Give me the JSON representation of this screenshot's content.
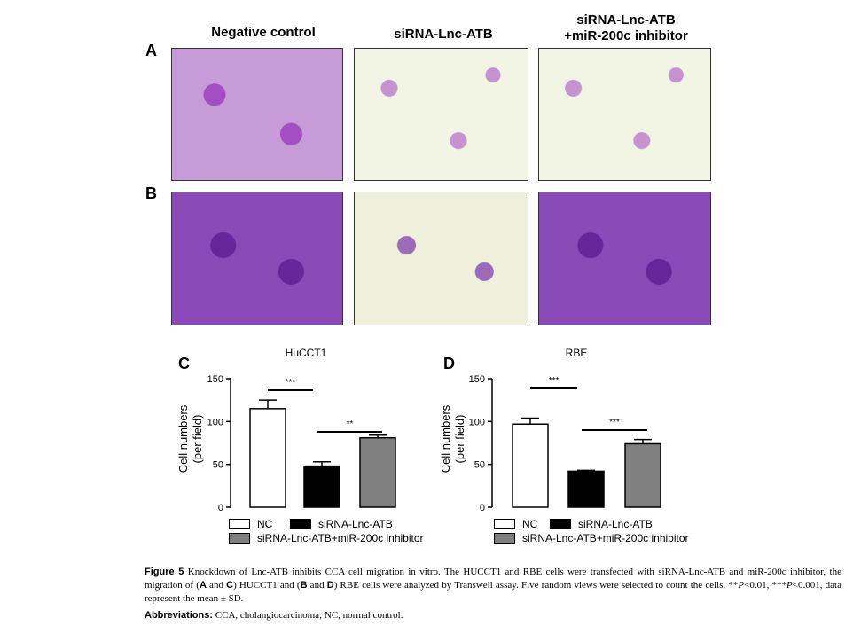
{
  "panels": {
    "a_label": "A",
    "b_label": "B",
    "c_label": "C",
    "d_label": "D"
  },
  "columns": {
    "col1": "Negative control",
    "col2": "siRNA-Lnc-ATB",
    "col3_line1": "siRNA-Lnc-ATB",
    "col3_line2": "+miR-200c inhibitor"
  },
  "chart_data": [
    {
      "type": "bar",
      "title": "HuCCT1",
      "categories": [
        "NC",
        "siRNA-Lnc-ATB",
        "siRNA-Lnc-ATB+miR-200c inhibitor"
      ],
      "values": [
        115,
        48,
        81
      ],
      "errors": [
        10,
        5,
        3
      ],
      "ylabel_line1": "Cell numbers",
      "ylabel_line2": "(per field)",
      "ylim": [
        0,
        150
      ],
      "yticks": [
        "0",
        "50",
        "100",
        "150"
      ],
      "significance": [
        {
          "label": "***",
          "between": [
            0,
            1
          ]
        },
        {
          "label": "**",
          "between": [
            1,
            2
          ]
        }
      ],
      "colors": [
        "#ffffff",
        "#000000",
        "#808080"
      ]
    },
    {
      "type": "bar",
      "title": "RBE",
      "categories": [
        "NC",
        "siRNA-Lnc-ATB",
        "siRNA-Lnc-ATB+miR-200c inhibitor"
      ],
      "values": [
        97,
        42,
        74
      ],
      "errors": [
        7,
        1,
        5
      ],
      "ylabel_line1": "Cell numbers",
      "ylabel_line2": "(per field)",
      "ylim": [
        0,
        150
      ],
      "yticks": [
        "0",
        "50",
        "100",
        "150"
      ],
      "significance": [
        {
          "label": "***",
          "between": [
            0,
            1
          ]
        },
        {
          "label": "***",
          "between": [
            1,
            2
          ]
        }
      ],
      "colors": [
        "#ffffff",
        "#000000",
        "#808080"
      ]
    }
  ],
  "legend": {
    "nc": "NC",
    "sirna": "siRNA-Lnc-ATB",
    "combo": "siRNA-Lnc-ATB+miR-200c inhibitor"
  },
  "caption": {
    "fig_label": "Figure 5",
    "text_1": " Knockdown of Lnc-ATB inhibits CCA cell migration in vitro. The HUCCT1 and RBE cells were transfected with siRNA-Lnc-ATB and miR-200c inhibitor, the migration of (",
    "bold_a": "A",
    "text_2": " and ",
    "bold_c": "C",
    "text_3": ") HUCCT1 and (",
    "bold_b": "B",
    "text_4": " and ",
    "bold_d": "D",
    "text_5": ") RBE cells were analyzed by Transwell assay. Five random views were selected to count the cells. **",
    "p1": "P",
    "text_6": "<0.01, ***",
    "p2": "P",
    "text_7": "<0.001, data represent the mean ± SD.",
    "abbr_label": "Abbreviations:",
    "abbr_text": " CCA, cholangiocarcinoma; NC, normal control."
  }
}
